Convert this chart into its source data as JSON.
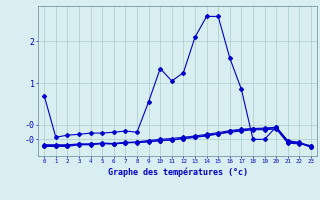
{
  "title": "",
  "xlabel": "Graphe des températures (°c)",
  "ylabel": "",
  "bg_color": "#d8eef0",
  "line_color": "#0000cc",
  "grid_color": "#aacccc",
  "axis_color": "#7799aa",
  "text_color": "#0000cc",
  "x_ticks": [
    0,
    1,
    2,
    3,
    4,
    5,
    6,
    7,
    8,
    9,
    10,
    11,
    12,
    13,
    14,
    15,
    16,
    17,
    18,
    19,
    20,
    21,
    22,
    23
  ],
  "ylim": [
    -0.75,
    2.85
  ],
  "xlim": [
    -0.5,
    23.5
  ],
  "ytick_positions": [
    -0.35,
    0.0,
    1.0,
    2.0
  ],
  "ytick_labels": [
    "-0",
    "-0",
    "1",
    "2"
  ],
  "series": [
    {
      "x": [
        0,
        1,
        2,
        3,
        4,
        5,
        6,
        7,
        8,
        9,
        10,
        11,
        12,
        13,
        14,
        15,
        16,
        17,
        18,
        19,
        20,
        21,
        22,
        23
      ],
      "y": [
        0.7,
        -0.3,
        -0.25,
        -0.23,
        -0.2,
        -0.2,
        -0.18,
        -0.15,
        -0.18,
        0.55,
        1.35,
        1.05,
        1.25,
        2.1,
        2.6,
        2.6,
        1.6,
        0.85,
        -0.35,
        -0.35,
        -0.05,
        -0.4,
        -0.42,
        -0.52
      ]
    },
    {
      "x": [
        0,
        1,
        2,
        3,
        4,
        5,
        6,
        7,
        8,
        9,
        10,
        11,
        12,
        13,
        14,
        15,
        16,
        17,
        18,
        19,
        20,
        21,
        22,
        23
      ],
      "y": [
        -0.48,
        -0.48,
        -0.48,
        -0.46,
        -0.46,
        -0.44,
        -0.45,
        -0.42,
        -0.42,
        -0.4,
        -0.38,
        -0.36,
        -0.33,
        -0.3,
        -0.27,
        -0.22,
        -0.18,
        -0.15,
        -0.12,
        -0.12,
        -0.1,
        -0.44,
        -0.46,
        -0.5
      ]
    },
    {
      "x": [
        0,
        1,
        2,
        3,
        4,
        5,
        6,
        7,
        8,
        9,
        10,
        11,
        12,
        13,
        14,
        15,
        16,
        17,
        18,
        19,
        20,
        21,
        22,
        23
      ],
      "y": [
        -0.5,
        -0.5,
        -0.5,
        -0.47,
        -0.47,
        -0.45,
        -0.46,
        -0.43,
        -0.43,
        -0.41,
        -0.38,
        -0.37,
        -0.33,
        -0.3,
        -0.25,
        -0.22,
        -0.16,
        -0.12,
        -0.1,
        -0.1,
        -0.07,
        -0.42,
        -0.44,
        -0.54
      ]
    },
    {
      "x": [
        0,
        1,
        2,
        3,
        4,
        5,
        6,
        7,
        8,
        9,
        10,
        11,
        12,
        13,
        14,
        15,
        16,
        17,
        18,
        19,
        20,
        21,
        22,
        23
      ],
      "y": [
        -0.52,
        -0.52,
        -0.52,
        -0.48,
        -0.48,
        -0.45,
        -0.46,
        -0.44,
        -0.41,
        -0.38,
        -0.35,
        -0.33,
        -0.3,
        -0.27,
        -0.23,
        -0.19,
        -0.14,
        -0.11,
        -0.09,
        -0.08,
        -0.06,
        -0.38,
        -0.43,
        -0.53
      ]
    }
  ]
}
